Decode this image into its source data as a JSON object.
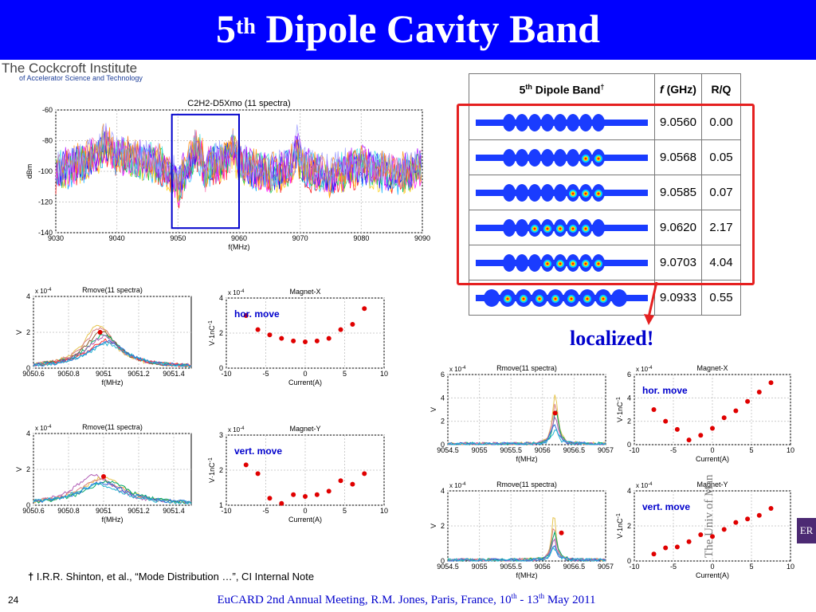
{
  "slide": {
    "title_base": "5",
    "title_sup": "th",
    "title_rest": " Dipole Cavity Band",
    "logo_line1": "The Cockcroft Institute",
    "logo_line2": "of Accelerator Science and Technology",
    "localized": "localized!",
    "footnote_mark": "†",
    "footnote": " I.R.R. Shinton, et al., “Mode Distribution …”, CI Internal Note",
    "page_number": "24",
    "footer_a": "EuCARD 2nd Annual Meeting, R.M. Jones, Paris, France, 10",
    "footer_sup1": "th",
    "footer_b": " - 13",
    "footer_sup2": "th",
    "footer_c": "  May 2011",
    "badge": "ER",
    "university": "The Univ of Man"
  },
  "table": {
    "header_band_base": "5",
    "header_band_sup": "th",
    "header_band_rest": " Dipole Band",
    "header_band_dagger": "†",
    "header_f_italic": "f",
    "header_f_rest": " (GHz)",
    "header_rq": "R/Q",
    "highlight_color": "#e52020",
    "rows": [
      {
        "f": "9.0560",
        "rq": "0.00"
      },
      {
        "f": "9.0568",
        "rq": " 0.05"
      },
      {
        "f": "9.0585",
        "rq": "0.07"
      },
      {
        "f": "9.0620",
        "rq": "2.17"
      },
      {
        "f": "9.0703",
        "rq": "4.04"
      },
      {
        "f": "9.0933",
        "rq": "0.55"
      }
    ]
  },
  "chart_data": [
    {
      "id": "spectrum",
      "type": "line",
      "title": "C2H2-D5Xmo (11 spectra)",
      "xlabel": "f(MHz)",
      "ylabel": "dBm",
      "xlim": [
        9030,
        9090
      ],
      "ylim": [
        -140,
        -60
      ],
      "xticks": [
        9030,
        9040,
        9050,
        9060,
        9070,
        9080,
        9090
      ],
      "yticks": [
        -60,
        -80,
        -100,
        -120,
        -140
      ],
      "grid": true,
      "series_count": 11,
      "x": [
        9030,
        9033,
        9035,
        9037,
        9038,
        9040,
        9043,
        9046,
        9048,
        9049.5,
        9050,
        9050.5,
        9052,
        9053,
        9054,
        9054.5,
        9055,
        9057,
        9058.5,
        9059,
        9059.5,
        9062,
        9065,
        9068,
        9069,
        9069.5,
        9070,
        9072,
        9075,
        9078,
        9080,
        9083,
        9086,
        9088,
        9090
      ],
      "y": [
        -100,
        -96,
        -93,
        -88,
        -82,
        -90,
        -92,
        -94,
        -98,
        -104,
        -112,
        -104,
        -94,
        -84,
        -92,
        -104,
        -96,
        -94,
        -90,
        -84,
        -93,
        -98,
        -102,
        -98,
        -92,
        -84,
        -94,
        -100,
        -104,
        -98,
        -96,
        -100,
        -102,
        -100,
        -96
      ],
      "highlight_box": {
        "x": [
          9049,
          9060
        ],
        "y": [
          -137,
          -63
        ],
        "color": "#0000cc"
      }
    },
    {
      "id": "rmove-hor",
      "type": "line",
      "title": "Rmove(11 spectra)",
      "xlabel": "f(MHz)",
      "ylabel": "V",
      "exponent": "x 10",
      "exponent_power": "-4",
      "xlim": [
        9050.6,
        9051.5
      ],
      "ylim": [
        0,
        4
      ],
      "xticks": [
        9050.6,
        9050.8,
        9051,
        9051.2,
        9051.4
      ],
      "yticks": [
        0,
        2,
        4
      ],
      "series": [
        {
          "name": "a",
          "color": "#e6c44d",
          "peak": 2.4,
          "width": 0.1,
          "center": 9050.97
        },
        {
          "name": "b",
          "color": "#d98080",
          "peak": 2.2,
          "width": 0.11,
          "center": 9050.98
        },
        {
          "name": "c",
          "color": "#8b5a2b",
          "peak": 2.0,
          "width": 0.11,
          "center": 9050.99
        },
        {
          "name": "d",
          "color": "#00a86b",
          "peak": 1.8,
          "width": 0.12,
          "center": 9051.0
        },
        {
          "name": "e",
          "color": "#b05cb5",
          "peak": 1.7,
          "width": 0.12,
          "center": 9051.0
        },
        {
          "name": "f",
          "color": "#ff3333",
          "peak": 1.5,
          "width": 0.13,
          "center": 9051.01
        },
        {
          "name": "g",
          "color": "#2b6cd9",
          "peak": 1.4,
          "width": 0.13,
          "center": 9051.02
        },
        {
          "name": "h",
          "color": "#20b2d0",
          "peak": 1.3,
          "width": 0.14,
          "center": 9051.02
        }
      ],
      "marker": {
        "x": 9050.98,
        "y": 2.0
      }
    },
    {
      "id": "magnet-x-1",
      "type": "scatter",
      "title": "Magnet-X",
      "xlabel": "Current(A)",
      "ylabel": "V·1nC",
      "ylabel_sup": "-1",
      "exponent": "x 10",
      "exponent_power": "-4",
      "annotation": "hor. move",
      "xlim": [
        -10,
        10
      ],
      "ylim": [
        0,
        4
      ],
      "xticks": [
        -10,
        -5,
        0,
        5,
        10
      ],
      "yticks": [
        0,
        2,
        4
      ],
      "x": [
        -7.5,
        -6,
        -4.5,
        -3,
        -1.5,
        0,
        1.5,
        3,
        4.5,
        6,
        7.5
      ],
      "y": [
        3.0,
        2.2,
        1.9,
        1.7,
        1.55,
        1.5,
        1.55,
        1.7,
        2.2,
        2.5,
        3.4
      ]
    },
    {
      "id": "rmove-vert",
      "type": "line",
      "title": "Rmove(11 spectra)",
      "xlabel": "f(MHz)",
      "ylabel": "V",
      "exponent": "x 10",
      "exponent_power": "-4",
      "xlim": [
        9050.6,
        9051.5
      ],
      "ylim": [
        0,
        4
      ],
      "xticks": [
        9050.6,
        9050.8,
        9051,
        9051.2,
        9051.4
      ],
      "yticks": [
        0,
        2,
        4
      ],
      "series": [
        {
          "name": "a",
          "color": "#b05cb5",
          "peak": 1.6,
          "width": 0.14,
          "center": 9050.95
        },
        {
          "name": "b",
          "color": "#e6c44d",
          "peak": 1.5,
          "width": 0.14,
          "center": 9051.0
        },
        {
          "name": "c",
          "color": "#d98080",
          "peak": 1.4,
          "width": 0.15,
          "center": 9050.98
        },
        {
          "name": "d",
          "color": "#00a86b",
          "peak": 1.3,
          "width": 0.15,
          "center": 9051.02
        },
        {
          "name": "e",
          "color": "#2b6cd9",
          "peak": 1.2,
          "width": 0.16,
          "center": 9051.0
        },
        {
          "name": "f",
          "color": "#20b2d0",
          "peak": 1.1,
          "width": 0.16,
          "center": 9050.97
        }
      ],
      "marker": {
        "x": 9051.0,
        "y": 1.6
      }
    },
    {
      "id": "magnet-y-1",
      "type": "scatter",
      "title": "Magnet-Y",
      "xlabel": "Current(A)",
      "ylabel": "V·1nC",
      "ylabel_sup": "-1",
      "exponent": "x 10",
      "exponent_power": "-4",
      "annotation": "vert. move",
      "xlim": [
        -10,
        10
      ],
      "ylim": [
        1,
        3
      ],
      "xticks": [
        -10,
        -5,
        0,
        5,
        10
      ],
      "yticks": [
        1,
        2,
        3
      ],
      "x": [
        -7.5,
        -6,
        -4.5,
        -3,
        -1.5,
        0,
        1.5,
        3,
        4.5,
        6,
        7.5
      ],
      "y": [
        2.15,
        1.9,
        1.2,
        1.05,
        1.3,
        1.25,
        1.3,
        1.4,
        1.7,
        1.6,
        1.9
      ]
    },
    {
      "id": "rmove-hor-2",
      "type": "line",
      "title": "Rmove(11 spectra)",
      "xlabel": "f(MHz)",
      "ylabel": "V",
      "exponent": "x 10",
      "exponent_power": "-4",
      "xlim": [
        9054.5,
        9057
      ],
      "ylim": [
        0,
        6
      ],
      "xticks": [
        9054.5,
        9055,
        9055.5,
        9056,
        9056.5,
        9057
      ],
      "yticks": [
        0,
        2,
        4,
        6
      ],
      "series": [
        {
          "name": "a",
          "color": "#e6c44d",
          "peak": 4.4,
          "width": 0.05,
          "center": 9056.2
        },
        {
          "name": "b",
          "color": "#d98080",
          "peak": 3.6,
          "width": 0.05,
          "center": 9056.2
        },
        {
          "name": "c",
          "color": "#00a86b",
          "peak": 3.0,
          "width": 0.05,
          "center": 9056.21
        },
        {
          "name": "d",
          "color": "#b05cb5",
          "peak": 2.4,
          "width": 0.06,
          "center": 9056.2
        },
        {
          "name": "e",
          "color": "#2b6cd9",
          "peak": 1.8,
          "width": 0.06,
          "center": 9056.19
        },
        {
          "name": "f",
          "color": "#20b2d0",
          "peak": 1.2,
          "width": 0.06,
          "center": 9056.2
        }
      ],
      "marker": {
        "x": 9056.2,
        "y": 2.7
      }
    },
    {
      "id": "magnet-x-2",
      "type": "scatter",
      "title": "Magnet-X",
      "xlabel": "Current(A)",
      "ylabel": "V·1nC",
      "ylabel_sup": "-1",
      "exponent": "x 10",
      "exponent_power": "-4",
      "annotation": "hor. move",
      "xlim": [
        -10,
        10
      ],
      "ylim": [
        0,
        6
      ],
      "xticks": [
        -10,
        -5,
        0,
        5,
        10
      ],
      "yticks": [
        0,
        2,
        4,
        6
      ],
      "x": [
        -7.5,
        -6,
        -4.5,
        -3,
        -1.5,
        0,
        1.5,
        3,
        4.5,
        6,
        7.5
      ],
      "y": [
        3.0,
        2.0,
        1.3,
        0.4,
        0.8,
        1.4,
        2.3,
        2.9,
        3.7,
        4.5,
        5.3
      ]
    },
    {
      "id": "rmove-vert-2",
      "type": "line",
      "title": "Rmove(11 spectra)",
      "xlabel": "f(MHz)",
      "ylabel": "V",
      "exponent": "x 10",
      "exponent_power": "-4",
      "xlim": [
        9054.5,
        9057
      ],
      "ylim": [
        0,
        4
      ],
      "xticks": [
        9054.5,
        9055,
        9055.5,
        9056,
        9056.5,
        9057
      ],
      "yticks": [
        0,
        2,
        4
      ],
      "series": [
        {
          "name": "a",
          "color": "#e6c44d",
          "peak": 2.6,
          "width": 0.04,
          "center": 9056.18
        },
        {
          "name": "b",
          "color": "#d98080",
          "peak": 2.0,
          "width": 0.04,
          "center": 9056.18
        },
        {
          "name": "c",
          "color": "#00a86b",
          "peak": 1.6,
          "width": 0.05,
          "center": 9056.19
        },
        {
          "name": "d",
          "color": "#b05cb5",
          "peak": 1.2,
          "width": 0.05,
          "center": 9056.18
        },
        {
          "name": "e",
          "color": "#2b6cd9",
          "peak": 0.9,
          "width": 0.05,
          "center": 9056.18
        },
        {
          "name": "f",
          "color": "#20b2d0",
          "peak": 0.7,
          "width": 0.06,
          "center": 9056.18
        }
      ],
      "marker": {
        "x": 9056.3,
        "y": 1.6
      }
    },
    {
      "id": "magnet-y-2",
      "type": "scatter",
      "title": "Magnet-Y",
      "xlabel": "Current(A)",
      "ylabel": "V·1nC",
      "ylabel_sup": "-1",
      "exponent": "x 10",
      "exponent_power": "-4",
      "annotation": "vert. move",
      "xlim": [
        -10,
        10
      ],
      "ylim": [
        0,
        4
      ],
      "xticks": [
        -10,
        -5,
        0,
        5,
        10
      ],
      "yticks": [
        0,
        2,
        4
      ],
      "x": [
        -7.5,
        -6,
        -4.5,
        -3,
        -1.5,
        0,
        1.5,
        3,
        4.5,
        6,
        7.5
      ],
      "y": [
        0.4,
        0.75,
        0.8,
        1.1,
        1.5,
        1.4,
        1.8,
        2.2,
        2.4,
        2.6,
        3.0
      ]
    }
  ]
}
